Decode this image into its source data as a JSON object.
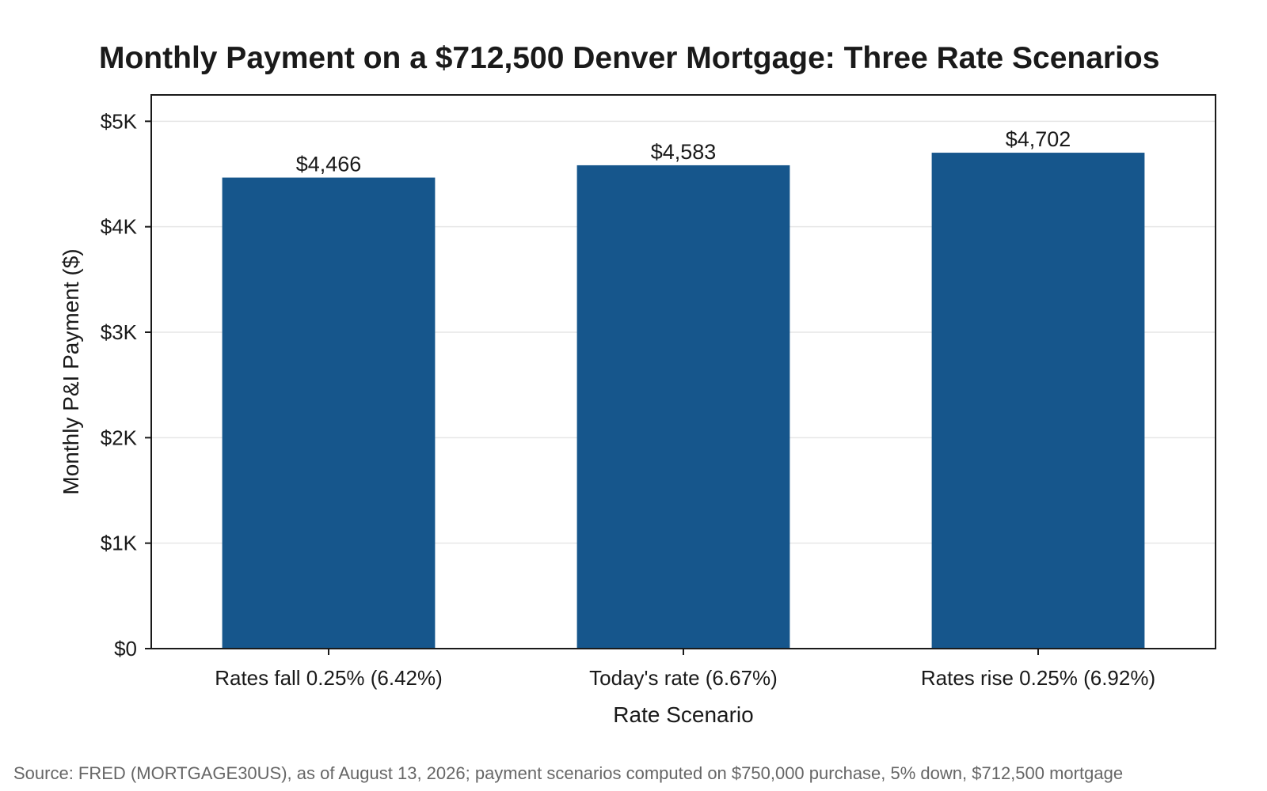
{
  "chart_data": {
    "type": "bar",
    "title": "Monthly Payment on a $712,500 Denver Mortgage: Three Rate Scenarios",
    "xlabel": "Rate Scenario",
    "ylabel": "Monthly P&I Payment ($)",
    "categories": [
      "Rates fall 0.25% (6.42%)",
      "Today's rate (6.67%)",
      "Rates rise 0.25% (6.92%)"
    ],
    "values": [
      4466,
      4583,
      4702
    ],
    "value_labels": [
      "$4,466",
      "$4,583",
      "$4,702"
    ],
    "ylim": [
      0,
      5250
    ],
    "yticks": [
      0,
      1000,
      2000,
      3000,
      4000,
      5000
    ],
    "ytick_labels": [
      "$0",
      "$1K",
      "$2K",
      "$3K",
      "$4K",
      "$5K"
    ],
    "grid": true,
    "bar_color": "#16568c",
    "source": "Source: FRED (MORTGAGE30US), as of August 13, 2026; payment scenarios computed on $750,000 purchase, 5% down, $712,500 mortgage"
  }
}
